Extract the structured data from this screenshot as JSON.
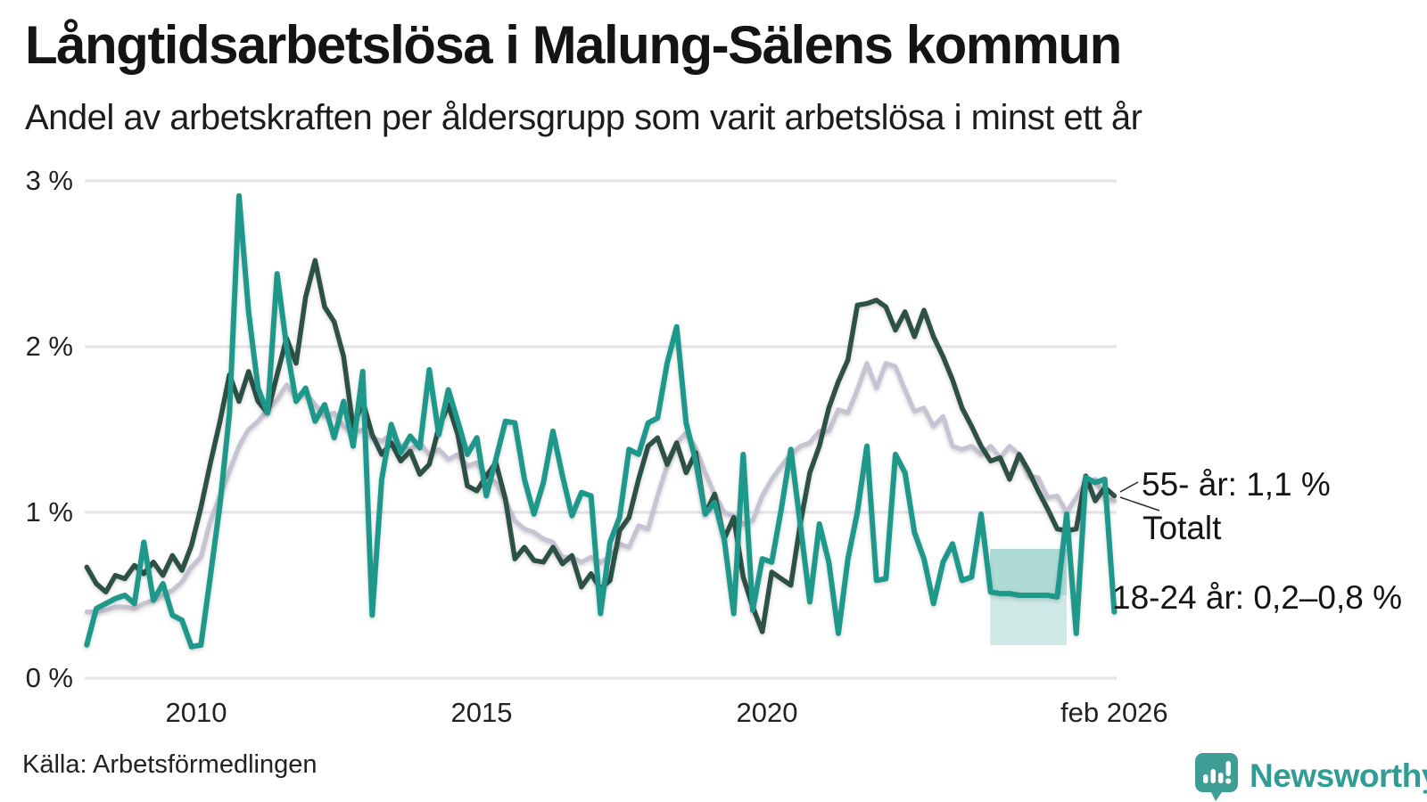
{
  "title": "Långtidsarbetslösa i Malung-Sälens kommun",
  "subtitle": "Andel av arbetskraften per åldersgrupp som varit arbetslösa i minst ett år",
  "source": "Källa: Arbetsförmedlingen",
  "logo": {
    "text": "Newsworthy",
    "icon": "bar-chart-speech-bubble-icon",
    "icon_color": "#3e9e96",
    "text_color": "#2f9d94"
  },
  "annotations": {
    "senior": "55- år: 1,1 %",
    "total": "Totalt",
    "young": "18-24 år: 0,2–0,8 %"
  },
  "colors": {
    "senior_line": "#2d5047",
    "total_line": "#c6c4d2",
    "young_line": "#1d988b",
    "band_upper": "rgba(27,152,137,0.35)",
    "band_lower": "rgba(27,152,137,0.22)",
    "gridline": "#e3e3e9",
    "leader": "#2a2a2a"
  },
  "chart_data": {
    "type": "line",
    "title": "Långtidsarbetslösa i Malung-Sälens kommun",
    "ylabel": "",
    "xlabel": "",
    "ylim": [
      0,
      3
    ],
    "grid": "horizontal",
    "legend_position": "end-of-line-annotations",
    "x_start": 2008.0833,
    "x_step_years": 0.16667,
    "x_end": 2026.0833,
    "yticks": [
      {
        "v": 0,
        "label": "0 %"
      },
      {
        "v": 1,
        "label": "1 %"
      },
      {
        "v": 2,
        "label": "2 %"
      },
      {
        "v": 3,
        "label": "3 %"
      }
    ],
    "xticks": [
      {
        "t": 2010,
        "label": "2010"
      },
      {
        "t": 2015,
        "label": "2015"
      },
      {
        "t": 2020,
        "label": "2020"
      },
      {
        "t": 2026.0833,
        "label": "feb 2026"
      }
    ],
    "series": [
      {
        "name": "Totalt",
        "color": "#c6c4d2",
        "width": 5,
        "values": [
          0.4,
          0.4,
          0.41,
          0.43,
          0.43,
          0.42,
          0.45,
          0.47,
          0.5,
          0.53,
          0.58,
          0.67,
          0.73,
          0.95,
          1.1,
          1.25,
          1.4,
          1.5,
          1.55,
          1.62,
          1.68,
          1.77,
          1.7,
          1.72,
          1.65,
          1.58,
          1.6,
          1.52,
          1.48,
          1.5,
          1.45,
          1.43,
          1.47,
          1.4,
          1.38,
          1.42,
          1.35,
          1.38,
          1.32,
          1.35,
          1.28,
          1.3,
          1.22,
          1.18,
          1.07,
          0.95,
          0.9,
          0.88,
          0.84,
          0.82,
          0.73,
          0.73,
          0.7,
          0.73,
          0.7,
          0.73,
          0.81,
          0.79,
          0.92,
          0.9,
          1.1,
          1.28,
          1.42,
          1.48,
          1.39,
          1.24,
          1.11,
          1.0,
          0.98,
          0.93,
          0.95,
          1.1,
          1.2,
          1.28,
          1.35,
          1.4,
          1.42,
          1.49,
          1.49,
          1.62,
          1.6,
          1.74,
          1.9,
          1.75,
          1.9,
          1.88,
          1.74,
          1.61,
          1.63,
          1.52,
          1.58,
          1.4,
          1.38,
          1.4,
          1.35,
          1.4,
          1.33,
          1.4,
          1.35,
          1.22,
          1.21,
          1.09,
          1.1,
          1.0,
          1.09,
          1.18,
          1.2,
          1.09,
          1.07
        ]
      },
      {
        "name": "55- år",
        "color": "#2d5047",
        "width": 5.5,
        "values": [
          0.67,
          0.57,
          0.52,
          0.62,
          0.6,
          0.68,
          0.63,
          0.7,
          0.62,
          0.74,
          0.65,
          0.8,
          1.03,
          1.3,
          1.55,
          1.83,
          1.67,
          1.85,
          1.67,
          1.6,
          1.83,
          2.05,
          1.9,
          2.3,
          2.52,
          2.24,
          2.15,
          1.94,
          1.51,
          1.67,
          1.47,
          1.35,
          1.42,
          1.31,
          1.37,
          1.23,
          1.29,
          1.51,
          1.65,
          1.47,
          1.16,
          1.13,
          1.22,
          1.3,
          1.08,
          0.72,
          0.79,
          0.71,
          0.7,
          0.79,
          0.69,
          0.74,
          0.55,
          0.63,
          0.54,
          0.59,
          0.89,
          0.97,
          1.2,
          1.4,
          1.45,
          1.29,
          1.42,
          1.24,
          1.36,
          0.99,
          1.11,
          0.84,
          0.97,
          0.61,
          0.43,
          0.28,
          0.64,
          0.6,
          0.56,
          0.93,
          1.24,
          1.4,
          1.63,
          1.79,
          1.92,
          2.25,
          2.26,
          2.28,
          2.24,
          2.1,
          2.21,
          2.06,
          2.22,
          2.06,
          1.94,
          1.8,
          1.63,
          1.52,
          1.4,
          1.31,
          1.33,
          1.2,
          1.35,
          1.25,
          1.13,
          1.02,
          0.9,
          0.89,
          0.9,
          1.22,
          1.07,
          1.15,
          1.1
        ]
      },
      {
        "name": "18-24 år",
        "color": "#1d988b",
        "width": 6,
        "values": [
          0.2,
          0.42,
          0.45,
          0.48,
          0.5,
          0.45,
          0.82,
          0.47,
          0.57,
          0.38,
          0.35,
          0.19,
          0.2,
          0.62,
          1.05,
          1.6,
          2.91,
          2.21,
          1.75,
          1.6,
          2.44,
          2.0,
          1.67,
          1.75,
          1.55,
          1.65,
          1.45,
          1.67,
          1.4,
          1.85,
          0.38,
          1.2,
          1.53,
          1.36,
          1.46,
          1.39,
          1.86,
          1.47,
          1.74,
          1.55,
          1.35,
          1.45,
          1.1,
          1.32,
          1.55,
          1.54,
          1.2,
          0.99,
          1.18,
          1.49,
          1.22,
          0.98,
          1.12,
          1.1,
          0.39,
          0.82,
          0.97,
          1.38,
          1.35,
          1.54,
          1.57,
          1.9,
          2.12,
          1.54,
          1.31,
          0.99,
          1.06,
          0.84,
          0.39,
          1.35,
          0.41,
          0.72,
          0.7,
          1.02,
          1.38,
          0.93,
          0.46,
          0.93,
          0.7,
          0.27,
          0.72,
          1.0,
          1.4,
          0.59,
          0.6,
          1.35,
          1.24,
          0.88,
          0.72,
          0.45,
          0.7,
          0.81,
          0.59,
          0.61,
          0.99,
          0.52,
          0.51,
          0.51,
          0.5,
          0.5,
          0.5,
          0.5,
          0.49,
          0.99,
          0.27,
          1.21,
          1.18,
          1.2,
          0.4
        ]
      }
    ],
    "uncertainty_band": {
      "series": "18-24 år",
      "t0": 2023.91,
      "t1": 2025.25,
      "low": 0.2,
      "high": 0.78,
      "mid_line": 0.5,
      "label": "18-24 år: 0,2–0,8 %"
    }
  }
}
